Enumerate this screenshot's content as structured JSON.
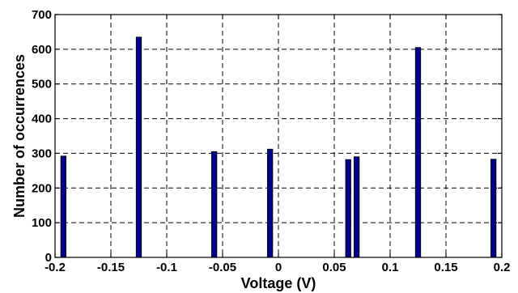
{
  "chart_data": {
    "type": "bar",
    "title": "",
    "xlabel": "Voltage (V)",
    "ylabel": "Number of occurrences",
    "xlim": [
      -0.2,
      0.2
    ],
    "ylim": [
      0,
      700
    ],
    "xticks": [
      -0.2,
      -0.15,
      -0.1,
      -0.05,
      0,
      0.05,
      0.1,
      0.15,
      0.2
    ],
    "xtick_labels": [
      "-0.2",
      "-0.15",
      "-0.1",
      "-0.05",
      "0",
      "0.05",
      "0.1",
      "0.15",
      "0.2"
    ],
    "yticks": [
      0,
      100,
      200,
      300,
      400,
      500,
      600,
      700
    ],
    "ytick_labels": [
      "0",
      "100",
      "200",
      "300",
      "400",
      "500",
      "600",
      "700"
    ],
    "grid": true,
    "bar_color": "#00008B",
    "x": [
      -0.1925,
      -0.125,
      -0.0575,
      -0.0075,
      0.0625,
      0.07,
      0.125,
      0.1925
    ],
    "values": [
      292,
      635,
      305,
      312,
      282,
      290,
      605,
      283
    ]
  }
}
